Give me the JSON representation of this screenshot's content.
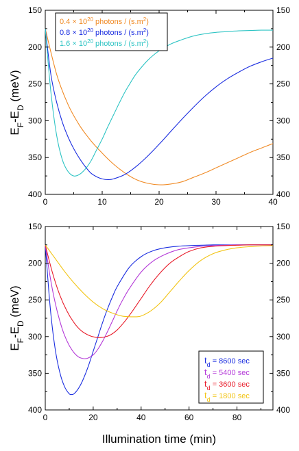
{
  "xlabel": "Illumination time (min)",
  "chart_data": [
    {
      "type": "line",
      "ylabel_main": "E",
      "ylabel_sub1": "F",
      "ylabel_mid": "-E",
      "ylabel_sub2": "D",
      "ylabel_unit": " (meV)",
      "xlim": [
        0,
        40
      ],
      "ylim": [
        400,
        150
      ],
      "y_inverted": true,
      "xticks": [
        "0",
        "10",
        "20",
        "30",
        "40"
      ],
      "yticks": [
        "150",
        "200",
        "250",
        "300",
        "350",
        "400"
      ],
      "grid": false,
      "legend_position": "top-left",
      "series": [
        {
          "legend_pre": "0.4 × 10",
          "legend_sup": "20",
          "legend_mid": " photons / (s.m",
          "legend_sup2": "2",
          "legend_post": ")",
          "color": "#f08a24",
          "x": [
            0,
            2,
            4,
            6,
            8,
            10,
            12,
            14,
            16,
            18,
            20,
            22,
            24,
            26,
            28,
            30,
            32,
            34,
            36,
            38,
            40
          ],
          "y": [
            175,
            237,
            278,
            306,
            327,
            344,
            359,
            371,
            380,
            385,
            387,
            386,
            383,
            377,
            371,
            364,
            357,
            350,
            343,
            337,
            331
          ]
        },
        {
          "legend_pre": "0.8 × 10",
          "legend_sup": "20",
          "legend_mid": " photons / (s.m",
          "legend_sup2": "2",
          "legend_post": ")",
          "color": "#1a2de0",
          "x": [
            0,
            1,
            2,
            3,
            4,
            5,
            6,
            7,
            8,
            9,
            10,
            11,
            12,
            14,
            16,
            18,
            20,
            22,
            24,
            26,
            28,
            30,
            32,
            34,
            36,
            38,
            40
          ],
          "y": [
            175,
            238,
            275,
            302,
            322,
            338,
            351,
            362,
            371,
            376,
            379,
            380,
            379,
            373,
            362,
            348,
            332,
            315,
            298,
            282,
            267,
            254,
            243,
            234,
            226,
            220,
            215
          ]
        },
        {
          "legend_pre": "1.6 × 10",
          "legend_sup": "20",
          "legend_mid": " photons / (s.m",
          "legend_sup2": "2",
          "legend_post": ")",
          "color": "#2ec4c4",
          "x": [
            0,
            1,
            2,
            3,
            4,
            5,
            6,
            7,
            8,
            9,
            10,
            11,
            12,
            13,
            14,
            15,
            16,
            18,
            20,
            22,
            24,
            26,
            28,
            30,
            32,
            34,
            36,
            38,
            40
          ],
          "y": [
            175,
            262,
            320,
            353,
            369,
            375,
            373,
            366,
            355,
            340,
            325,
            308,
            292,
            276,
            261,
            248,
            236,
            218,
            205,
            196,
            190,
            185,
            182,
            180,
            179,
            178,
            177.5,
            177,
            177
          ]
        }
      ]
    },
    {
      "type": "line",
      "ylabel_main": "E",
      "ylabel_sub1": "F",
      "ylabel_mid": "-E",
      "ylabel_sub2": "D",
      "ylabel_unit": " (meV)",
      "xlim": [
        0,
        95
      ],
      "ylim": [
        400,
        150
      ],
      "y_inverted": true,
      "xticks": [
        "0",
        "20",
        "40",
        "60",
        "80"
      ],
      "yticks": [
        "150",
        "200",
        "250",
        "300",
        "350",
        "400"
      ],
      "grid": false,
      "legend_position": "bottom-right",
      "series": [
        {
          "legend_pre": "t",
          "legend_sub": "d",
          "legend_post": " = 8600 sec",
          "color": "#1a2de0",
          "x": [
            0,
            2,
            4,
            6,
            8,
            10,
            11,
            12,
            14,
            16,
            18,
            20,
            22,
            24,
            26,
            28,
            30,
            35,
            40,
            45,
            50,
            55,
            60,
            65,
            70,
            75,
            80,
            85,
            90,
            95
          ],
          "y": [
            175,
            258,
            314,
            348,
            368,
            378,
            379,
            378,
            370,
            357,
            340,
            320,
            300,
            280,
            262,
            246,
            232,
            206,
            191,
            183,
            179,
            177,
            176,
            175.5,
            175,
            175,
            175,
            175,
            175,
            175
          ]
        },
        {
          "legend_pre": "t",
          "legend_sub": "d",
          "legend_post": " = 5400 sec",
          "color": "#b43ad8",
          "x": [
            0,
            2,
            4,
            6,
            8,
            10,
            12,
            14,
            16,
            17,
            18,
            20,
            22,
            24,
            26,
            28,
            30,
            32,
            35,
            40,
            45,
            50,
            55,
            60,
            65,
            70,
            75,
            80,
            85,
            90,
            95
          ],
          "y": [
            175,
            218,
            252,
            278,
            298,
            312,
            322,
            328,
            330,
            330,
            329,
            325,
            317,
            306,
            293,
            279,
            265,
            252,
            235,
            212,
            197,
            188,
            182,
            179,
            177,
            176,
            175.5,
            175,
            175,
            175,
            175
          ]
        },
        {
          "legend_pre": "t",
          "legend_sub": "d",
          "legend_post": " = 3600 sec",
          "color": "#e81c2a",
          "x": [
            0,
            3,
            6,
            9,
            12,
            15,
            18,
            21,
            24,
            27,
            30,
            33,
            36,
            40,
            44,
            48,
            52,
            56,
            60,
            65,
            70,
            75,
            80,
            85,
            90,
            95
          ],
          "y": [
            175,
            213,
            243,
            265,
            281,
            292,
            298,
            301,
            301,
            298,
            291,
            280,
            267,
            248,
            229,
            213,
            200,
            191,
            184,
            179,
            177,
            176,
            175.5,
            175,
            175,
            175
          ]
        },
        {
          "legend_pre": "t",
          "legend_sub": "d",
          "legend_post": " = 1800 sec",
          "color": "#f2c414",
          "x": [
            0,
            4,
            8,
            12,
            16,
            20,
            24,
            28,
            32,
            36,
            38,
            40,
            44,
            48,
            52,
            56,
            60,
            65,
            70,
            75,
            80,
            85,
            90,
            95
          ],
          "y": [
            175,
            193,
            211,
            227,
            241,
            253,
            262,
            268,
            272,
            273,
            273,
            272,
            265,
            254,
            239,
            224,
            210,
            196,
            187,
            182,
            179,
            177.5,
            176.5,
            176
          ]
        }
      ]
    }
  ]
}
